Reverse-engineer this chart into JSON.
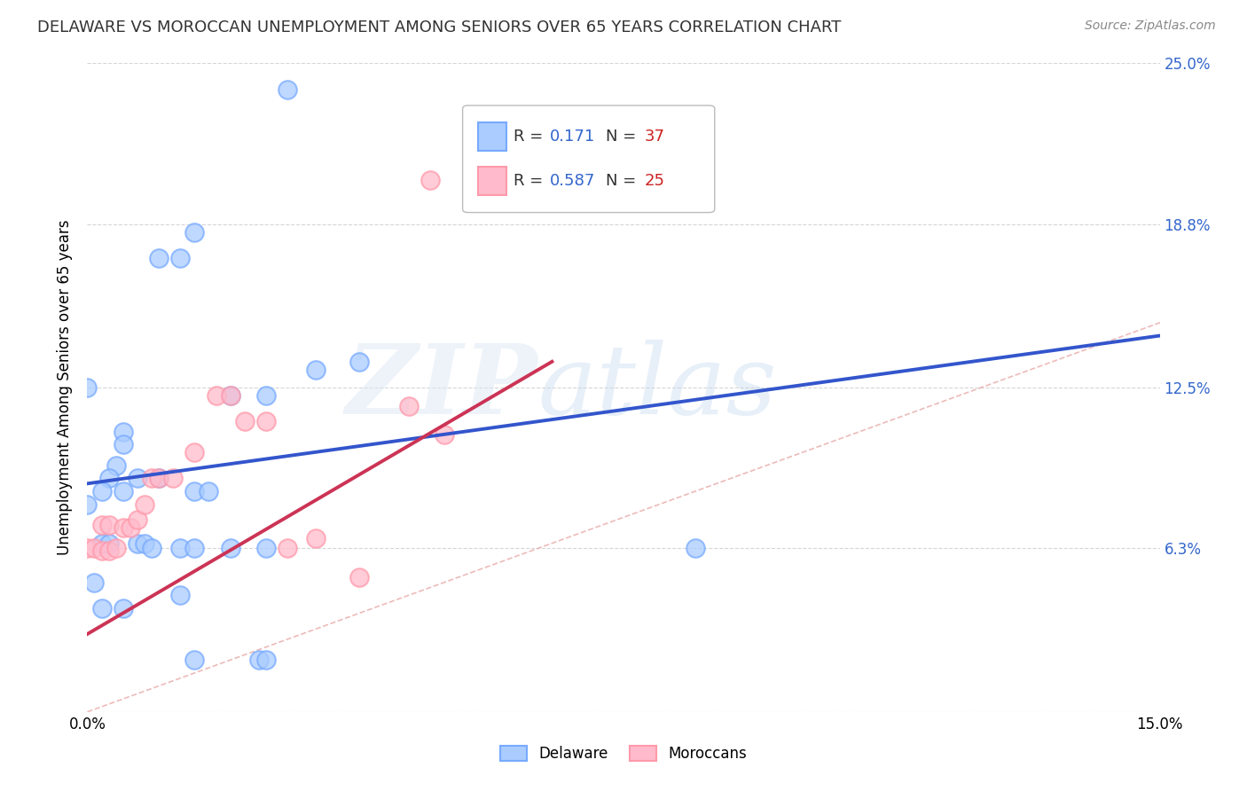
{
  "title": "DELAWARE VS MOROCCAN UNEMPLOYMENT AMONG SENIORS OVER 65 YEARS CORRELATION CHART",
  "source": "Source: ZipAtlas.com",
  "ylabel": "Unemployment Among Seniors over 65 years",
  "xlim": [
    0,
    0.15
  ],
  "ylim": [
    0,
    0.25
  ],
  "watermark_line1": "ZIP",
  "watermark_line2": "atlas",
  "delaware_R": "0.171",
  "delaware_N": "37",
  "moroccan_R": "0.587",
  "moroccan_N": "25",
  "delaware_color_face": "#aaccff",
  "delaware_color_edge": "#77aaff",
  "moroccan_color_face": "#ffbbcc",
  "moroccan_color_edge": "#ff99aa",
  "delaware_scatter": [
    [
      0.0,
      0.08
    ],
    [
      0.01,
      0.175
    ],
    [
      0.013,
      0.175
    ],
    [
      0.028,
      0.24
    ],
    [
      0.0,
      0.125
    ],
    [
      0.015,
      0.185
    ],
    [
      0.005,
      0.108
    ],
    [
      0.005,
      0.103
    ],
    [
      0.004,
      0.095
    ],
    [
      0.003,
      0.09
    ],
    [
      0.007,
      0.09
    ],
    [
      0.01,
      0.09
    ],
    [
      0.005,
      0.085
    ],
    [
      0.002,
      0.085
    ],
    [
      0.015,
      0.085
    ],
    [
      0.017,
      0.085
    ],
    [
      0.02,
      0.122
    ],
    [
      0.025,
      0.122
    ],
    [
      0.032,
      0.132
    ],
    [
      0.038,
      0.135
    ],
    [
      0.002,
      0.065
    ],
    [
      0.003,
      0.065
    ],
    [
      0.007,
      0.065
    ],
    [
      0.008,
      0.065
    ],
    [
      0.009,
      0.063
    ],
    [
      0.013,
      0.063
    ],
    [
      0.015,
      0.063
    ],
    [
      0.02,
      0.063
    ],
    [
      0.025,
      0.063
    ],
    [
      0.001,
      0.05
    ],
    [
      0.002,
      0.04
    ],
    [
      0.005,
      0.04
    ],
    [
      0.013,
      0.045
    ],
    [
      0.015,
      0.02
    ],
    [
      0.024,
      0.02
    ],
    [
      0.025,
      0.02
    ],
    [
      0.085,
      0.063
    ]
  ],
  "moroccan_scatter": [
    [
      0.0,
      0.063
    ],
    [
      0.001,
      0.063
    ],
    [
      0.002,
      0.062
    ],
    [
      0.003,
      0.062
    ],
    [
      0.004,
      0.063
    ],
    [
      0.002,
      0.072
    ],
    [
      0.003,
      0.072
    ],
    [
      0.005,
      0.071
    ],
    [
      0.006,
      0.071
    ],
    [
      0.007,
      0.074
    ],
    [
      0.008,
      0.08
    ],
    [
      0.009,
      0.09
    ],
    [
      0.01,
      0.09
    ],
    [
      0.012,
      0.09
    ],
    [
      0.015,
      0.1
    ],
    [
      0.018,
      0.122
    ],
    [
      0.02,
      0.122
    ],
    [
      0.022,
      0.112
    ],
    [
      0.025,
      0.112
    ],
    [
      0.028,
      0.063
    ],
    [
      0.032,
      0.067
    ],
    [
      0.038,
      0.052
    ],
    [
      0.045,
      0.118
    ],
    [
      0.048,
      0.205
    ],
    [
      0.05,
      0.107
    ]
  ],
  "delaware_line_x": [
    0.0,
    0.15
  ],
  "delaware_line_y": [
    0.088,
    0.145
  ],
  "moroccan_line_x": [
    0.0,
    0.065
  ],
  "moroccan_line_y": [
    0.03,
    0.135
  ],
  "ref_line_x": [
    0.0,
    0.25
  ],
  "ref_line_y": [
    0.0,
    0.25
  ],
  "background_color": "#ffffff",
  "grid_color": "#cccccc",
  "title_fontsize": 13,
  "axis_fontsize": 12,
  "legend_fontsize": 13
}
